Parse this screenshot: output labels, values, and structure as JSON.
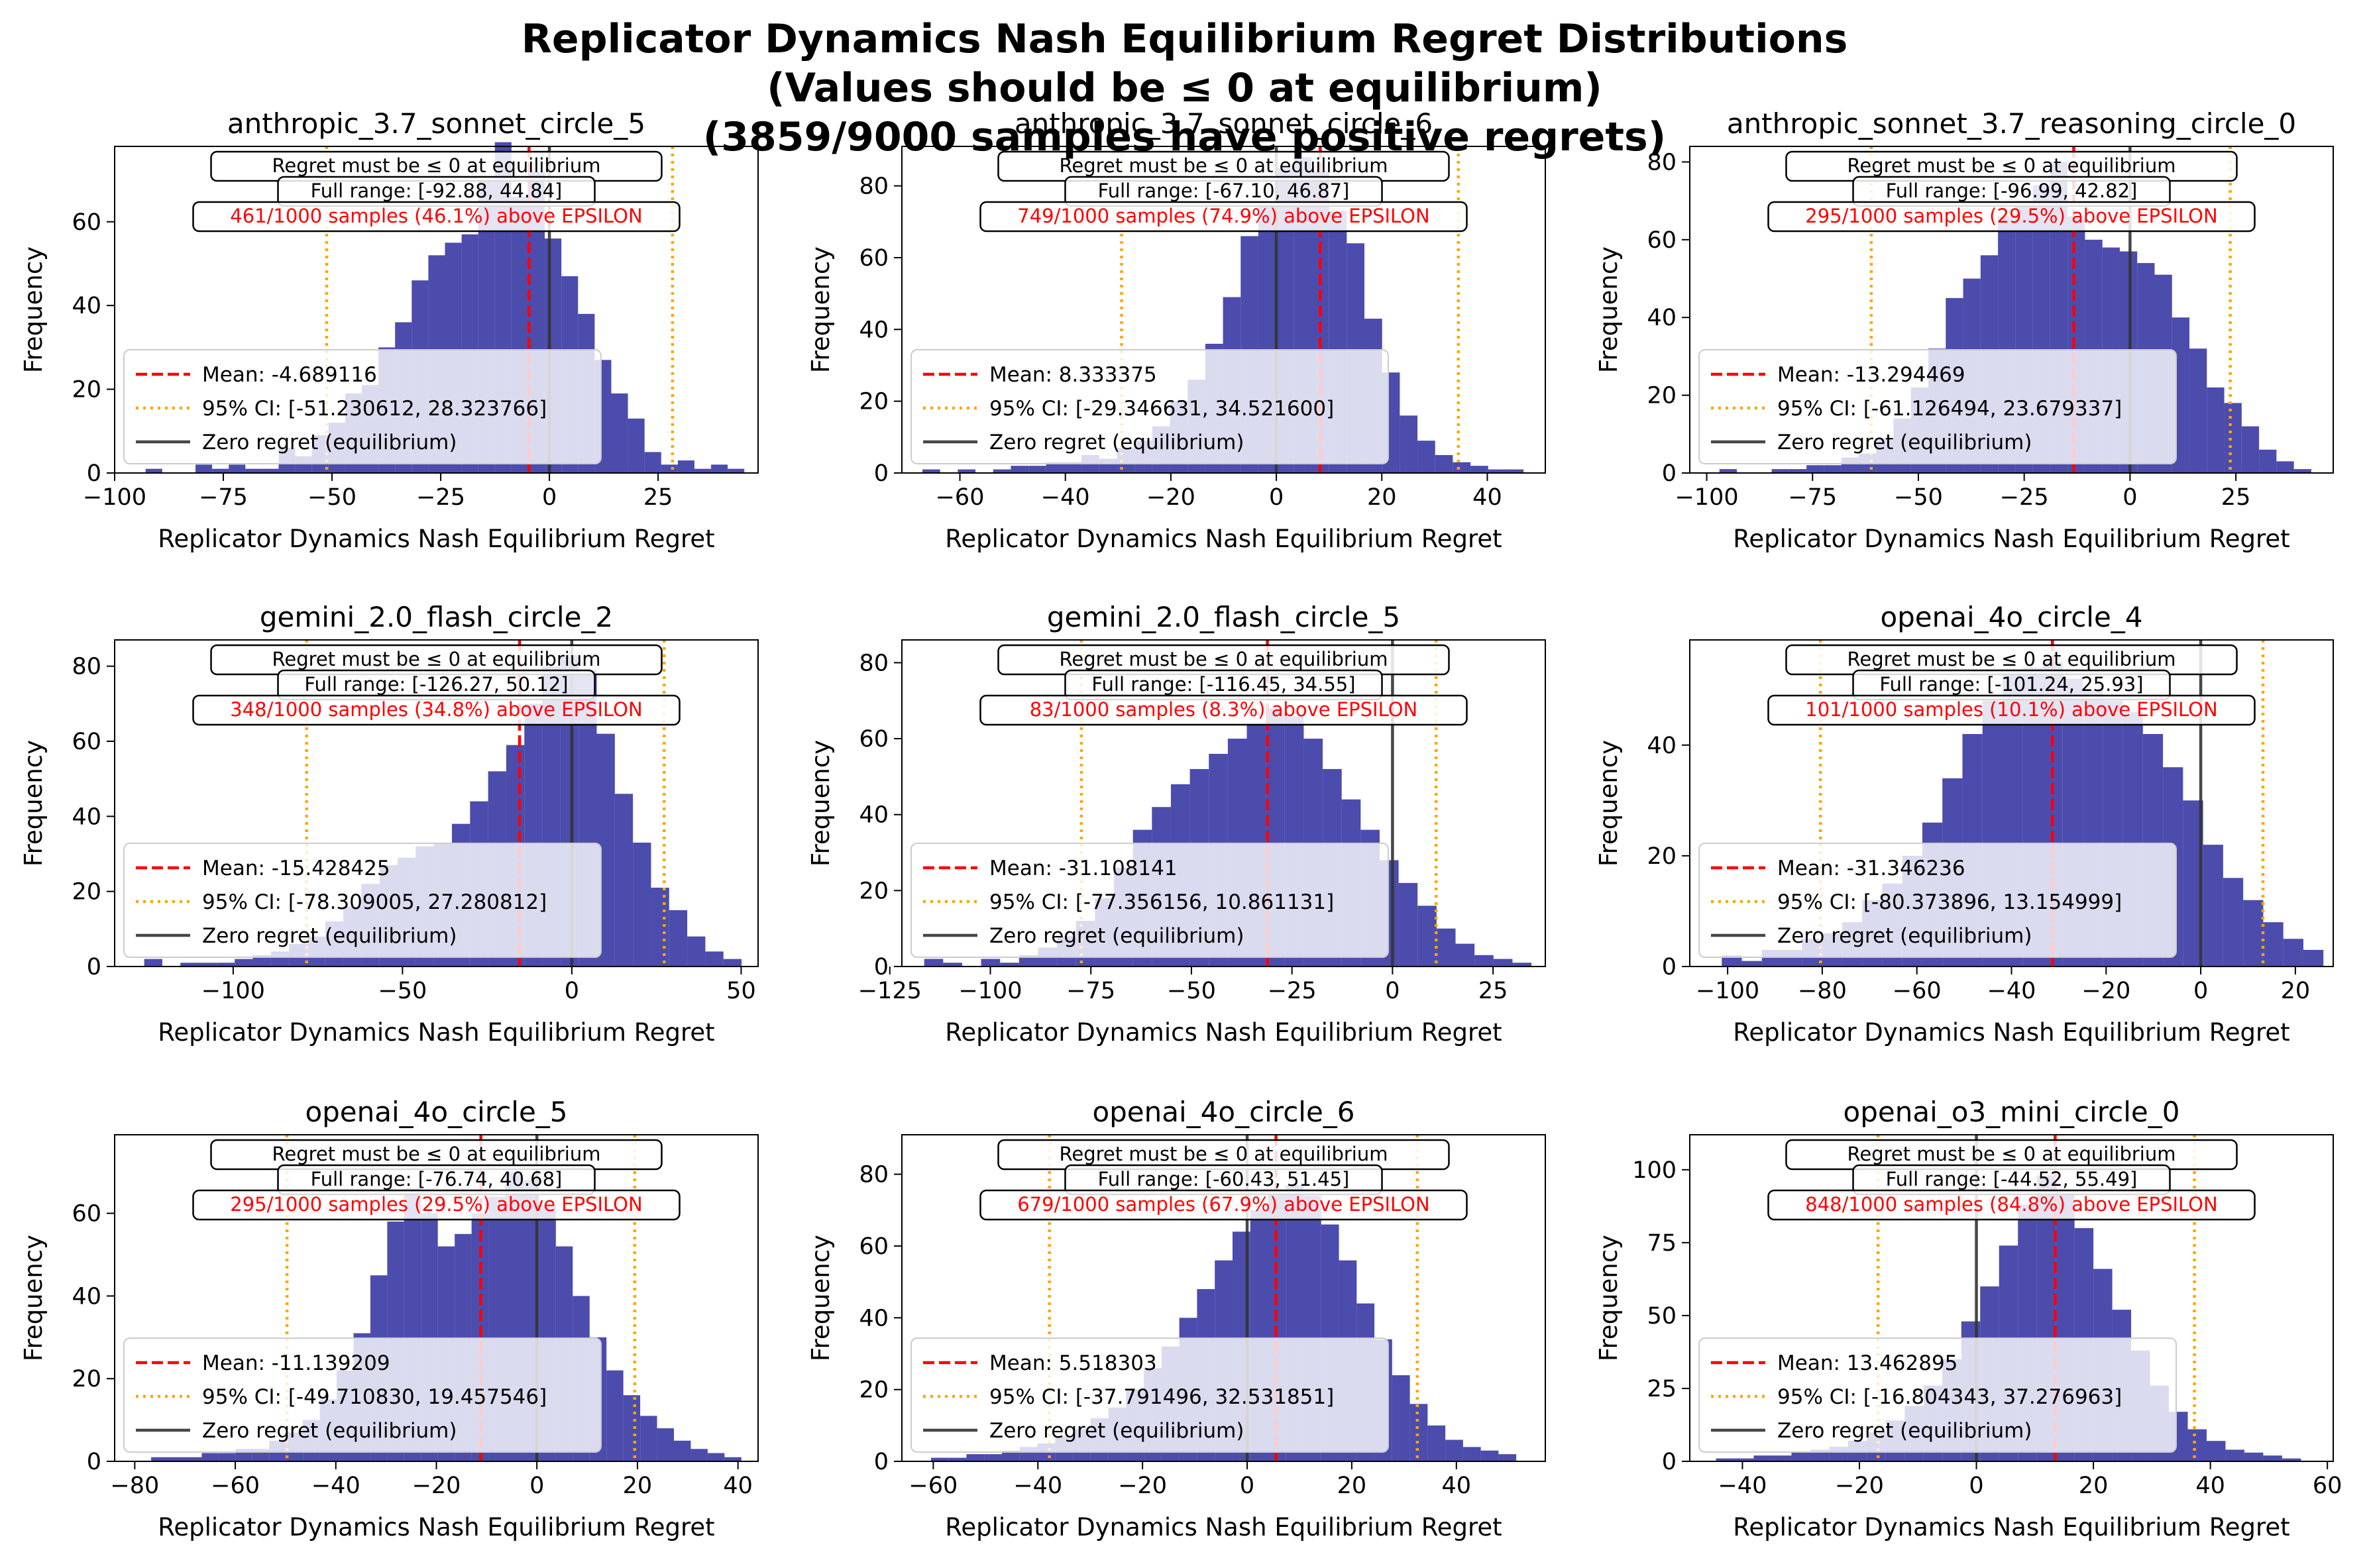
{
  "figure": {
    "title_line1": "Replicator Dynamics Nash Equilibrium Regret Distributions",
    "title_line2": "(Values should be ≤ 0 at equilibrium)",
    "title_line3": "(3859/9000 samples have positive regrets)"
  },
  "colors": {
    "bars": "#1f1f99",
    "mean": "#ff0000",
    "ci": "#ffa500",
    "zero": "#333333",
    "above_text": "#ff0000"
  },
  "chart_data": [
    {
      "type": "bar",
      "title": "anthropic_3.7_sonnet_circle_5",
      "xlabel": "Replicator Dynamics Nash Equilibrium Regret",
      "ylabel": "Frequency",
      "xlim": [
        -100,
        48
      ],
      "ylim": [
        0,
        78
      ],
      "xticks": [
        -100,
        -75,
        -50,
        -25,
        0,
        25
      ],
      "xtick_labels": [
        "−100",
        "−75",
        "−50",
        "−25",
        "0",
        "25"
      ],
      "yticks": [
        0,
        20,
        40,
        60
      ],
      "ytick_labels": [
        "0",
        "20",
        "40",
        "60"
      ],
      "bin_start": -92.88,
      "bin_end": 44.84,
      "counts": [
        1,
        0,
        0,
        2,
        1,
        2,
        1,
        1,
        6,
        4,
        9,
        12,
        19,
        21,
        30,
        36,
        46,
        52,
        55,
        57,
        70,
        79,
        66,
        72,
        56,
        47,
        38,
        27,
        19,
        13,
        5,
        2,
        3,
        1,
        2,
        1
      ],
      "mean": -4.689116,
      "ci": [
        -51.230612,
        28.323766
      ],
      "info": [
        "Regret must be ≤ 0 at equilibrium",
        "Full range: [-92.88, 44.84]",
        "461/1000 samples (46.1%) above EPSILON"
      ],
      "legend": [
        "Mean: -4.689116",
        "95% CI: [-51.230612, 28.323766]",
        "Zero regret (equilibrium)"
      ]
    },
    {
      "type": "bar",
      "title": "anthropic_3.7_sonnet_circle_6",
      "xlabel": "Replicator Dynamics Nash Equilibrium Regret",
      "ylabel": "Frequency",
      "xlim": [
        -71,
        51
      ],
      "ylim": [
        0,
        91
      ],
      "xticks": [
        -60,
        -40,
        -20,
        0,
        20,
        40
      ],
      "xtick_labels": [
        "−60",
        "−40",
        "−20",
        "0",
        "20",
        "40"
      ],
      "yticks": [
        0,
        20,
        40,
        60,
        80
      ],
      "ytick_labels": [
        "0",
        "20",
        "40",
        "60",
        "80"
      ],
      "bin_start": -67.1,
      "bin_end": 46.87,
      "counts": [
        1,
        0,
        1,
        0,
        1,
        2,
        2,
        3,
        3,
        5,
        4,
        7,
        9,
        13,
        20,
        26,
        36,
        49,
        66,
        75,
        85,
        88,
        84,
        73,
        64,
        43,
        28,
        16,
        9,
        5,
        3,
        2,
        1,
        1
      ],
      "mean": 8.333375,
      "ci": [
        -29.346631,
        34.5216
      ],
      "info": [
        "Regret must be ≤ 0 at equilibrium",
        "Full range: [-67.10, 46.87]",
        "749/1000 samples (74.9%) above EPSILON"
      ],
      "legend": [
        "Mean: 8.333375",
        "95% CI: [-29.346631, 34.521600]",
        "Zero regret (equilibrium)"
      ]
    },
    {
      "type": "bar",
      "title": "anthropic_sonnet_3.7_reasoning_circle_0",
      "xlabel": "Replicator Dynamics Nash Equilibrium Regret",
      "ylabel": "Frequency",
      "xlim": [
        -104,
        48
      ],
      "ylim": [
        0,
        84
      ],
      "xticks": [
        -100,
        -75,
        -50,
        -25,
        0,
        25
      ],
      "xtick_labels": [
        "−100",
        "−75",
        "−50",
        "−25",
        "0",
        "25"
      ],
      "yticks": [
        0,
        20,
        40,
        60,
        80
      ],
      "ytick_labels": [
        "0",
        "20",
        "40",
        "60",
        "80"
      ],
      "bin_start": -96.99,
      "bin_end": 42.82,
      "counts": [
        1,
        0,
        0,
        1,
        1,
        2,
        2,
        4,
        5,
        9,
        14,
        22,
        32,
        45,
        50,
        56,
        66,
        70,
        74,
        80,
        66,
        60,
        58,
        57,
        54,
        51,
        40,
        32,
        22,
        18,
        12,
        6,
        3,
        1
      ],
      "mean": -13.294469,
      "ci": [
        -61.126494,
        23.679337
      ],
      "info": [
        "Regret must be ≤ 0 at equilibrium",
        "Full range: [-96.99, 42.82]",
        "295/1000 samples (29.5%) above EPSILON"
      ],
      "legend": [
        "Mean: -13.294469",
        "95% CI: [-61.126494, 23.679337]",
        "Zero regret (equilibrium)"
      ]
    },
    {
      "type": "bar",
      "title": "gemini_2.0_flash_circle_2",
      "xlabel": "Replicator Dynamics Nash Equilibrium Regret",
      "ylabel": "Frequency",
      "xlim": [
        -135,
        55
      ],
      "ylim": [
        0,
        87
      ],
      "xticks": [
        -100,
        -50,
        0,
        50
      ],
      "xtick_labels": [
        "−100",
        "−50",
        "0",
        "50"
      ],
      "yticks": [
        0,
        20,
        40,
        60,
        80
      ],
      "ytick_labels": [
        "0",
        "20",
        "40",
        "60",
        "80"
      ],
      "bin_start": -126.27,
      "bin_end": 50.12,
      "counts": [
        2,
        0,
        1,
        1,
        1,
        2,
        3,
        4,
        6,
        8,
        12,
        16,
        22,
        27,
        29,
        32,
        33,
        38,
        44,
        52,
        59,
        70,
        80,
        83,
        79,
        62,
        46,
        33,
        21,
        15,
        8,
        4,
        2
      ],
      "mean": -15.428425,
      "ci": [
        -78.309005,
        27.280812
      ],
      "info": [
        "Regret must be ≤ 0 at equilibrium",
        "Full range: [-126.27, 50.12]",
        "348/1000 samples (34.8%) above EPSILON"
      ],
      "legend": [
        "Mean: -15.428425",
        "95% CI: [-78.309005, 27.280812]",
        "Zero regret (equilibrium)"
      ]
    },
    {
      "type": "bar",
      "title": "gemini_2.0_flash_circle_5",
      "xlabel": "Replicator Dynamics Nash Equilibrium Regret",
      "ylabel": "Frequency",
      "xlim": [
        -122,
        38
      ],
      "ylim": [
        0,
        86
      ],
      "xticks": [
        -125,
        -100,
        -75,
        -50,
        -25,
        0,
        25
      ],
      "xtick_labels": [
        "−125",
        "−100",
        "−75",
        "−50",
        "−25",
        "0",
        "25"
      ],
      "yticks": [
        0,
        20,
        40,
        60,
        80
      ],
      "ytick_labels": [
        "0",
        "20",
        "40",
        "60",
        "80"
      ],
      "bin_start": -116.45,
      "bin_end": 34.55,
      "counts": [
        2,
        1,
        0,
        2,
        1,
        3,
        5,
        8,
        12,
        18,
        26,
        36,
        42,
        48,
        52,
        56,
        60,
        64,
        68,
        66,
        60,
        52,
        44,
        36,
        28,
        22,
        16,
        10,
        6,
        3,
        2,
        1
      ],
      "mean": -31.108141,
      "ci": [
        -77.356156,
        10.861131
      ],
      "info": [
        "Regret must be ≤ 0 at equilibrium",
        "Full range: [-116.45, 34.55]",
        "83/1000 samples (8.3%) above EPSILON"
      ],
      "legend": [
        "Mean: -31.108141",
        "95% CI: [-77.356156, 10.861131]",
        "Zero regret (equilibrium)"
      ]
    },
    {
      "type": "bar",
      "title": "openai_4o_circle_4",
      "xlabel": "Replicator Dynamics Nash Equilibrium Regret",
      "ylabel": "Frequency",
      "xlim": [
        -108,
        28
      ],
      "ylim": [
        0,
        59
      ],
      "xticks": [
        -100,
        -80,
        -60,
        -40,
        -20,
        0,
        20
      ],
      "xtick_labels": [
        "−100",
        "−80",
        "−60",
        "−40",
        "−20",
        "0",
        "20"
      ],
      "yticks": [
        0,
        20,
        40
      ],
      "ytick_labels": [
        "0",
        "20",
        "40"
      ],
      "bin_start": -101.24,
      "bin_end": 25.93,
      "counts": [
        2,
        1,
        3,
        3,
        5,
        6,
        8,
        12,
        15,
        20,
        26,
        34,
        42,
        48,
        53,
        54,
        55,
        52,
        50,
        48,
        46,
        42,
        36,
        30,
        22,
        16,
        12,
        8,
        5,
        3
      ],
      "mean": -31.346236,
      "ci": [
        -80.373896,
        13.154999
      ],
      "info": [
        "Regret must be ≤ 0 at equilibrium",
        "Full range: [-101.24, 25.93]",
        "101/1000 samples (10.1%) above EPSILON"
      ],
      "legend": [
        "Mean: -31.346236",
        "95% CI: [-80.373896, 13.154999]",
        "Zero regret (equilibrium)"
      ]
    },
    {
      "type": "bar",
      "title": "openai_4o_circle_5",
      "xlabel": "Replicator Dynamics Nash Equilibrium Regret",
      "ylabel": "Frequency",
      "xlim": [
        -84,
        44
      ],
      "ylim": [
        0,
        79
      ],
      "xticks": [
        -80,
        -60,
        -40,
        -20,
        0,
        20,
        40
      ],
      "xtick_labels": [
        "−80",
        "−60",
        "−40",
        "−20",
        "0",
        "20",
        "40"
      ],
      "yticks": [
        0,
        20,
        40,
        60
      ],
      "ytick_labels": [
        "0",
        "20",
        "40",
        "60"
      ],
      "bin_start": -76.74,
      "bin_end": 40.68,
      "counts": [
        1,
        1,
        1,
        2,
        2,
        3,
        3,
        5,
        7,
        10,
        15,
        22,
        31,
        45,
        58,
        66,
        60,
        52,
        55,
        60,
        64,
        70,
        68,
        62,
        52,
        40,
        30,
        22,
        16,
        11,
        8,
        5,
        3,
        2,
        1
      ],
      "mean": -11.139209,
      "ci": [
        -49.71083,
        19.457546
      ],
      "info": [
        "Regret must be ≤ 0 at equilibrium",
        "Full range: [-76.74, 40.68]",
        "295/1000 samples (29.5%) above EPSILON"
      ],
      "legend": [
        "Mean: -11.139209",
        "95% CI: [-49.710830, 19.457546]",
        "Zero regret (equilibrium)"
      ]
    },
    {
      "type": "bar",
      "title": "openai_4o_circle_6",
      "xlabel": "Replicator Dynamics Nash Equilibrium Regret",
      "ylabel": "Frequency",
      "xlim": [
        -66,
        57
      ],
      "ylim": [
        0,
        91
      ],
      "xticks": [
        -60,
        -40,
        -20,
        0,
        20,
        40
      ],
      "xtick_labels": [
        "−60",
        "−40",
        "−20",
        "0",
        "20",
        "40"
      ],
      "yticks": [
        0,
        20,
        40,
        60,
        80
      ],
      "ytick_labels": [
        "0",
        "20",
        "40",
        "60",
        "80"
      ],
      "bin_start": -60.43,
      "bin_end": 51.45,
      "counts": [
        1,
        1,
        2,
        2,
        3,
        4,
        5,
        7,
        9,
        12,
        15,
        20,
        26,
        32,
        40,
        48,
        56,
        64,
        70,
        75,
        77,
        74,
        66,
        56,
        44,
        34,
        24,
        16,
        10,
        6,
        4,
        3,
        2
      ],
      "mean": 5.518303,
      "ci": [
        -37.791496,
        32.531851
      ],
      "info": [
        "Regret must be ≤ 0 at equilibrium",
        "Full range: [-60.43, 51.45]",
        "679/1000 samples (67.9%) above EPSILON"
      ],
      "legend": [
        "Mean: 5.518303",
        "95% CI: [-37.791496, 32.531851]",
        "Zero regret (equilibrium)"
      ]
    },
    {
      "type": "bar",
      "title": "openai_o3_mini_circle_0",
      "xlabel": "Replicator Dynamics Nash Equilibrium Regret",
      "ylabel": "Frequency",
      "xlim": [
        -49,
        61
      ],
      "ylim": [
        0,
        112
      ],
      "xticks": [
        -40,
        -20,
        0,
        20,
        40,
        60
      ],
      "xtick_labels": [
        "−40",
        "−20",
        "0",
        "20",
        "40",
        "60"
      ],
      "yticks": [
        0,
        25,
        50,
        75,
        100
      ],
      "ytick_labels": [
        "0",
        "25",
        "50",
        "75",
        "100"
      ],
      "bin_start": -44.52,
      "bin_end": 55.49,
      "counts": [
        1,
        1,
        2,
        2,
        3,
        4,
        5,
        7,
        10,
        14,
        19,
        26,
        35,
        48,
        60,
        74,
        88,
        98,
        92,
        80,
        66,
        52,
        38,
        26,
        17,
        11,
        7,
        4,
        3,
        2,
        1
      ],
      "mean": 13.462895,
      "ci": [
        -16.804343,
        37.276963
      ],
      "info": [
        "Regret must be ≤ 0 at equilibrium",
        "Full range: [-44.52, 55.49]",
        "848/1000 samples (84.8%) above EPSILON"
      ],
      "legend": [
        "Mean: 13.462895",
        "95% CI: [-16.804343, 37.276963]",
        "Zero regret (equilibrium)"
      ]
    }
  ]
}
